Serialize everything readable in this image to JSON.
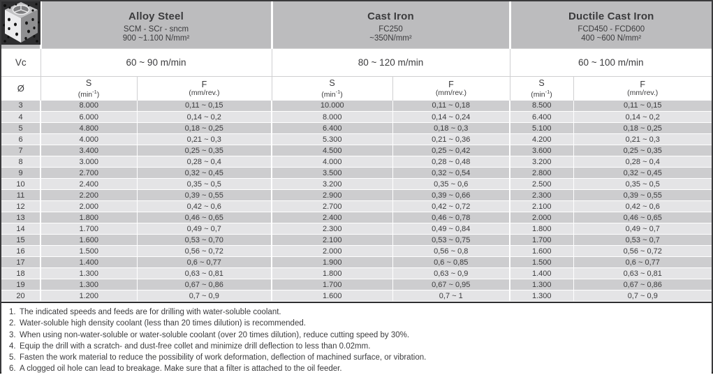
{
  "icons": {
    "product": "drilled-block-icon"
  },
  "colors": {
    "header_bg": "#bcbcbe",
    "row_dark": "#cdcdcf",
    "row_light": "#e4e4e6",
    "frame": "#3a3a3c"
  },
  "labels": {
    "vc": "Vc",
    "diameter": "Ø",
    "s": "S",
    "s_unit_open": "(min",
    "s_unit_sup": "-1",
    "s_unit_close": ")",
    "f": "F",
    "f_unit": "(mm/rev.)"
  },
  "materials": [
    {
      "name": "Alloy Steel",
      "grade": "SCM - SCr - sncm",
      "strength": "900 ~1.100 N/mm²",
      "vc": "60 ~ 90 m/min"
    },
    {
      "name": "Cast Iron",
      "grade": "FC250",
      "strength": "~350N/mm²",
      "vc": "80 ~ 120 m/min"
    },
    {
      "name": "Ductile Cast Iron",
      "grade": "FCD450 - FCD600",
      "strength": "400 ~600 N/mm²",
      "vc": "60 ~ 100 m/min"
    }
  ],
  "rows": [
    {
      "d": "3",
      "cells": [
        "8.000",
        "0,11 ~ 0,15",
        "10.000",
        "0,11 ~ 0,18",
        "8.500",
        "0,11 ~ 0,15"
      ]
    },
    {
      "d": "4",
      "cells": [
        "6.000",
        "0,14 ~ 0,2",
        "8.000",
        "0,14 ~ 0,24",
        "6.400",
        "0,14 ~ 0,2"
      ]
    },
    {
      "d": "5",
      "cells": [
        "4.800",
        "0,18 ~ 0,25",
        "6.400",
        "0,18 ~ 0,3",
        "5.100",
        "0,18 ~ 0,25"
      ]
    },
    {
      "d": "6",
      "cells": [
        "4.000",
        "0,21 ~ 0,3",
        "5.300",
        "0,21 ~ 0,36",
        "4.200",
        "0,21 ~ 0,3"
      ]
    },
    {
      "d": "7",
      "cells": [
        "3.400",
        "0,25 ~ 0,35",
        "4.500",
        "0,25 ~ 0,42",
        "3.600",
        "0,25 ~ 0,35"
      ]
    },
    {
      "d": "8",
      "cells": [
        "3.000",
        "0,28 ~ 0,4",
        "4.000",
        "0,28 ~ 0,48",
        "3.200",
        "0,28 ~ 0,4"
      ]
    },
    {
      "d": "9",
      "cells": [
        "2.700",
        "0,32 ~ 0,45",
        "3.500",
        "0,32 ~ 0,54",
        "2.800",
        "0,32 ~ 0,45"
      ]
    },
    {
      "d": "10",
      "cells": [
        "2.400",
        "0,35 ~ 0,5",
        "3.200",
        "0,35 ~ 0,6",
        "2.500",
        "0,35 ~ 0,5"
      ]
    },
    {
      "d": "11",
      "cells": [
        "2.200",
        "0,39 ~ 0,55",
        "2.900",
        "0,39 ~ 0,66",
        "2.300",
        "0,39 ~ 0,55"
      ]
    },
    {
      "d": "12",
      "cells": [
        "2.000",
        "0,42 ~ 0,6",
        "2.700",
        "0,42 ~ 0,72",
        "2.100",
        "0,42 ~ 0,6"
      ]
    },
    {
      "d": "13",
      "cells": [
        "1.800",
        "0,46 ~ 0,65",
        "2.400",
        "0,46 ~ 0,78",
        "2.000",
        "0,46 ~ 0,65"
      ]
    },
    {
      "d": "14",
      "cells": [
        "1.700",
        "0,49 ~ 0,7",
        "2.300",
        "0,49 ~ 0,84",
        "1.800",
        "0,49 ~ 0,7"
      ]
    },
    {
      "d": "15",
      "cells": [
        "1.600",
        "0,53 ~ 0,70",
        "2.100",
        "0,53 ~ 0,75",
        "1.700",
        "0,53 ~ 0,7"
      ]
    },
    {
      "d": "16",
      "cells": [
        "1.500",
        "0,56 ~ 0,72",
        "2.000",
        "0,56 ~ 0,8",
        "1.600",
        "0,56 ~ 0,72"
      ]
    },
    {
      "d": "17",
      "cells": [
        "1.400",
        "0,6 ~ 0,77",
        "1.900",
        "0,6 ~ 0,85",
        "1.500",
        "0,6 ~ 0,77"
      ]
    },
    {
      "d": "18",
      "cells": [
        "1.300",
        "0,63 ~ 0,81",
        "1.800",
        "0,63 ~ 0,9",
        "1.400",
        "0,63 ~ 0,81"
      ]
    },
    {
      "d": "19",
      "cells": [
        "1.300",
        "0,67 ~ 0,86",
        "1.700",
        "0,67 ~ 0,95",
        "1.300",
        "0,67 ~ 0,86"
      ]
    },
    {
      "d": "20",
      "cells": [
        "1.200",
        "0,7 ~ 0,9",
        "1.600",
        "0,7 ~ 1",
        "1.300",
        "0,7 ~ 0,9"
      ]
    }
  ],
  "notes": [
    "The indicated speeds and feeds are for drilling with water-soluble coolant.",
    "Water-soluble high density coolant (less than 20 times dilution) is recommended.",
    "When using non-water-soluble or water-soluble coolant (over 20 times dilution), reduce cutting speed by 30%.",
    "Equip the drill with a scratch- and dust-free collet and minimize drill deflection to less than 0.02mm.",
    "Fasten the work material to reduce the possibility of work deformation, deflection of machined surface, or vibration.",
    "A clogged oil hole can lead to breakage. Make sure that a filter is attached to the oil feeder."
  ]
}
